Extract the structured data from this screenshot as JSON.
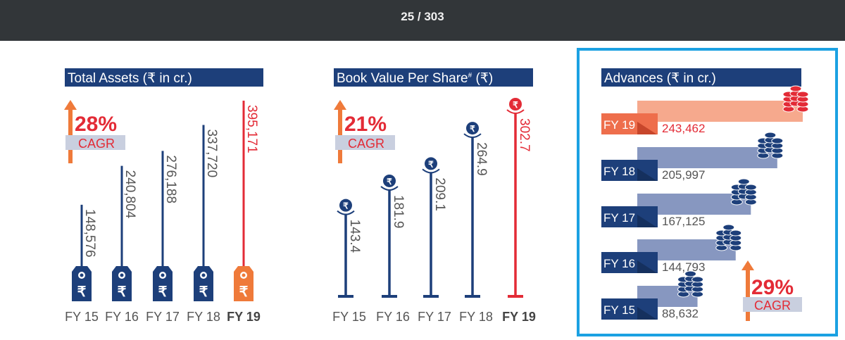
{
  "viewer": {
    "page_counter": "25 / 303"
  },
  "colors": {
    "navy": "#1d3f7a",
    "red": "#e32b36",
    "orange": "#ef7a3a",
    "salmon": "#f6a98d",
    "slate": "#8797c0",
    "cagr_bg": "#c9cfdf",
    "highlight_border": "#1ba1e2"
  },
  "chart_data": [
    {
      "type": "bar",
      "title": "Total Assets (₹ in cr.)",
      "categories": [
        "FY 15",
        "FY 16",
        "FY 17",
        "FY 18",
        "FY 19"
      ],
      "values": [
        148576,
        240804,
        276188,
        337720,
        395171
      ],
      "value_labels": [
        "148,576",
        "240,804",
        "276,188",
        "337,720",
        "395,171"
      ],
      "highlight": "FY 19",
      "cagr": {
        "value": "28%",
        "label": "CAGR"
      },
      "icon": "price-tag-rupee-icon"
    },
    {
      "type": "bar",
      "title": "Book Value Per Share",
      "title_sup": "#",
      "title_unit": " (₹)",
      "categories": [
        "FY 15",
        "FY 16",
        "FY 17",
        "FY 18",
        "FY 19"
      ],
      "values": [
        143.4,
        181.9,
        209.1,
        264.9,
        302.7
      ],
      "value_labels": [
        "143.4",
        "181.9",
        "209.1",
        "264.9",
        "302.7"
      ],
      "highlight": "FY 19",
      "cagr": {
        "value": "21%",
        "label": "CAGR"
      },
      "icon": "rupee-coin-icon"
    },
    {
      "type": "bar",
      "orientation": "horizontal",
      "title": "Advances (₹ in cr.)",
      "categories": [
        "FY 19",
        "FY 18",
        "FY 17",
        "FY 16",
        "FY 15"
      ],
      "values": [
        243462,
        205997,
        167125,
        144793,
        88632
      ],
      "value_labels": [
        "243,462",
        "205,997",
        "167,125",
        "144,793",
        "88,632"
      ],
      "highlight": "FY 19",
      "cagr": {
        "value": "29%",
        "label": "CAGR"
      },
      "icon": "coin-stack-icon"
    }
  ]
}
